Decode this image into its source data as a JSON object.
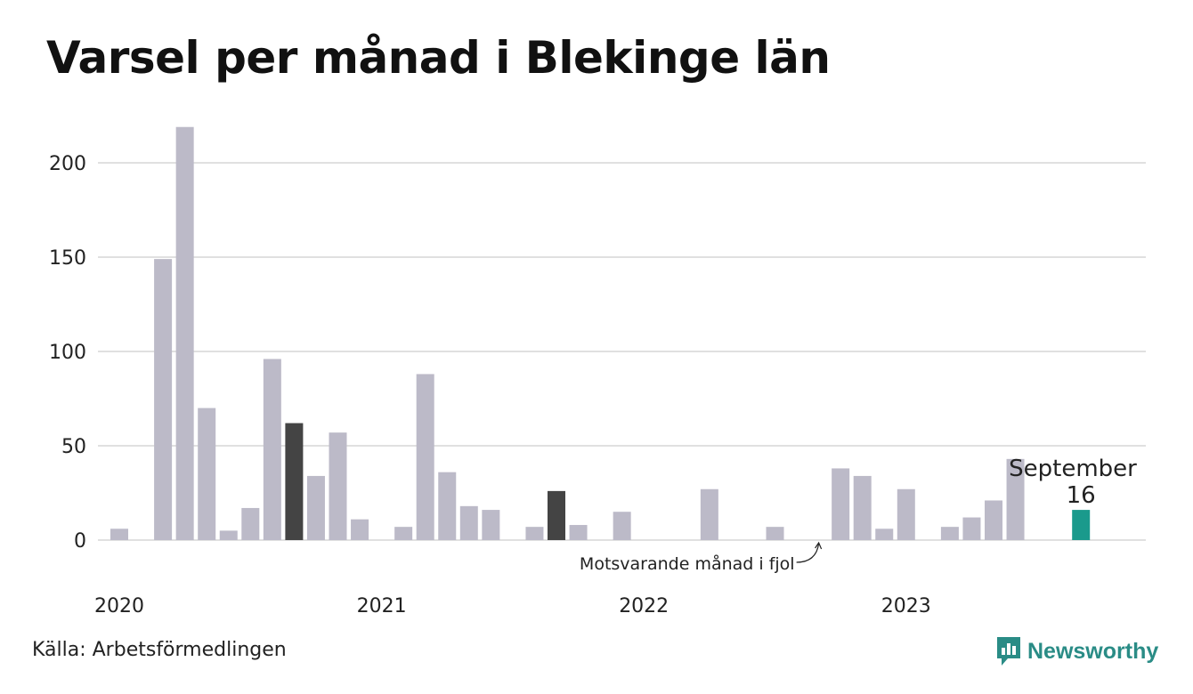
{
  "title": "Varsel per månad i Blekinge län",
  "source": "Källa: Arbetsförmedlingen",
  "brand": {
    "name": "Newsworthy",
    "color": "#2a8c86"
  },
  "colors": {
    "default": "#bcbac8",
    "previous_year": "#444444",
    "current": "#1a9a8c",
    "grid": "#e0e0e0"
  },
  "chart_data": {
    "type": "bar",
    "x": [
      "2020-01",
      "2020-02",
      "2020-03",
      "2020-04",
      "2020-05",
      "2020-06",
      "2020-07",
      "2020-08",
      "2020-09",
      "2020-10",
      "2020-11",
      "2020-12",
      "2021-01",
      "2021-02",
      "2021-03",
      "2021-04",
      "2021-05",
      "2021-06",
      "2021-07",
      "2021-08",
      "2021-09",
      "2021-10",
      "2021-11",
      "2021-12",
      "2022-01",
      "2022-02",
      "2022-03",
      "2022-04",
      "2022-05",
      "2022-06",
      "2022-07",
      "2022-08",
      "2022-09",
      "2022-10",
      "2022-11",
      "2022-12",
      "2023-01",
      "2023-02",
      "2023-03",
      "2023-04",
      "2023-05",
      "2023-06",
      "2023-07",
      "2023-08",
      "2023-09"
    ],
    "values": [
      6,
      0,
      149,
      219,
      70,
      5,
      17,
      96,
      62,
      34,
      57,
      11,
      0,
      7,
      88,
      36,
      18,
      16,
      0,
      7,
      26,
      8,
      0,
      15,
      0,
      0,
      0,
      27,
      0,
      0,
      7,
      0,
      0,
      38,
      34,
      6,
      27,
      0,
      7,
      12,
      21,
      43,
      0,
      0,
      16
    ],
    "previous_year_months": [
      "2020-09",
      "2021-09"
    ],
    "current_month": "2023-09",
    "ylim": [
      0,
      225
    ],
    "yticks": [
      0,
      50,
      100,
      150,
      200
    ],
    "xticks": [
      {
        "at": "2020-01",
        "label": "2020"
      },
      {
        "at": "2021-01",
        "label": "2021"
      },
      {
        "at": "2022-01",
        "label": "2022"
      },
      {
        "at": "2023-01",
        "label": "2023"
      }
    ],
    "grid": true,
    "annotations": [
      {
        "text": "Motsvarande månad i fjol",
        "target": "2022-09"
      }
    ],
    "highlight_label": {
      "month_name": "September",
      "value": "16"
    }
  }
}
